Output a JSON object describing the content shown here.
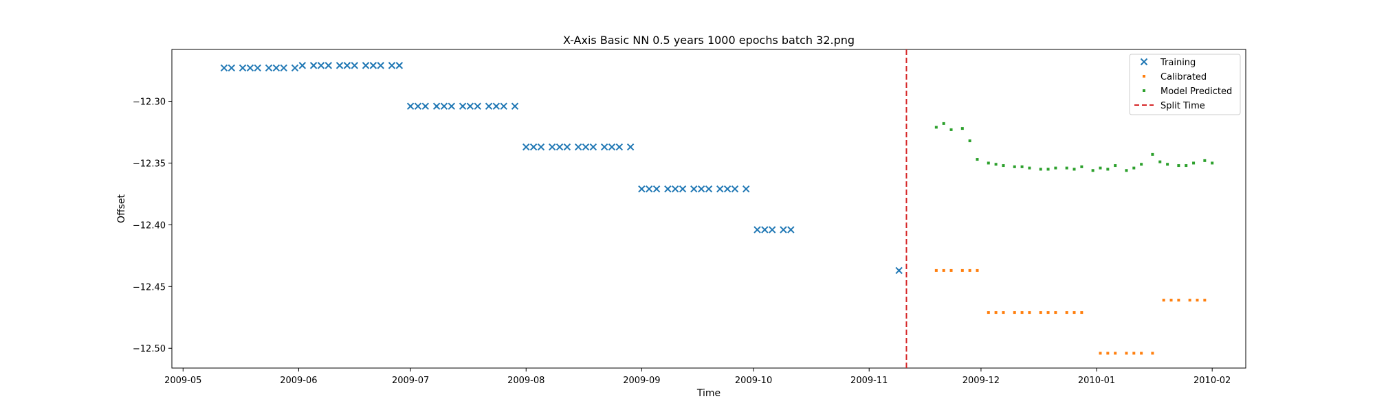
{
  "chart_data": {
    "type": "scatter",
    "title": "X-Axis Basic NN 0.5 years 1000 epochs batch 32.png",
    "xlabel": "Time",
    "ylabel": "Offset",
    "x_type": "date",
    "xlim": [
      "2009-04-28",
      "2010-02-10"
    ],
    "ylim": [
      -12.516,
      -12.258
    ],
    "x_ticks": [
      {
        "value": "2009-05-01",
        "label": "2009-05"
      },
      {
        "value": "2009-06-01",
        "label": "2009-06"
      },
      {
        "value": "2009-07-01",
        "label": "2009-07"
      },
      {
        "value": "2009-08-01",
        "label": "2009-08"
      },
      {
        "value": "2009-09-01",
        "label": "2009-09"
      },
      {
        "value": "2009-10-01",
        "label": "2009-10"
      },
      {
        "value": "2009-11-01",
        "label": "2009-11"
      },
      {
        "value": "2009-12-01",
        "label": "2009-12"
      },
      {
        "value": "2010-01-01",
        "label": "2010-01"
      },
      {
        "value": "2010-02-01",
        "label": "2010-02"
      }
    ],
    "y_ticks": [
      {
        "value": -12.3,
        "label": "−12.30"
      },
      {
        "value": -12.35,
        "label": "−12.35"
      },
      {
        "value": -12.4,
        "label": "−12.40"
      },
      {
        "value": -12.45,
        "label": "−12.45"
      },
      {
        "value": -12.5,
        "label": "−12.50"
      }
    ],
    "grid": false,
    "legend_position": "top-right",
    "split_time": "2009-11-11",
    "series": [
      {
        "name": "Training",
        "marker": "x",
        "color": "#1f77b4",
        "points": [
          [
            "2009-05-12",
            -12.273
          ],
          [
            "2009-05-14",
            -12.273
          ],
          [
            "2009-05-17",
            -12.273
          ],
          [
            "2009-05-19",
            -12.273
          ],
          [
            "2009-05-21",
            -12.273
          ],
          [
            "2009-05-24",
            -12.273
          ],
          [
            "2009-05-26",
            -12.273
          ],
          [
            "2009-05-28",
            -12.273
          ],
          [
            "2009-05-31",
            -12.273
          ],
          [
            "2009-06-02",
            -12.271
          ],
          [
            "2009-06-05",
            -12.271
          ],
          [
            "2009-06-07",
            -12.271
          ],
          [
            "2009-06-09",
            -12.271
          ],
          [
            "2009-06-12",
            -12.271
          ],
          [
            "2009-06-14",
            -12.271
          ],
          [
            "2009-06-16",
            -12.271
          ],
          [
            "2009-06-19",
            -12.271
          ],
          [
            "2009-06-21",
            -12.271
          ],
          [
            "2009-06-23",
            -12.271
          ],
          [
            "2009-06-26",
            -12.271
          ],
          [
            "2009-06-28",
            -12.271
          ],
          [
            "2009-07-01",
            -12.304
          ],
          [
            "2009-07-03",
            -12.304
          ],
          [
            "2009-07-05",
            -12.304
          ],
          [
            "2009-07-08",
            -12.304
          ],
          [
            "2009-07-10",
            -12.304
          ],
          [
            "2009-07-12",
            -12.304
          ],
          [
            "2009-07-15",
            -12.304
          ],
          [
            "2009-07-17",
            -12.304
          ],
          [
            "2009-07-19",
            -12.304
          ],
          [
            "2009-07-22",
            -12.304
          ],
          [
            "2009-07-24",
            -12.304
          ],
          [
            "2009-07-26",
            -12.304
          ],
          [
            "2009-07-29",
            -12.304
          ],
          [
            "2009-08-01",
            -12.337
          ],
          [
            "2009-08-03",
            -12.337
          ],
          [
            "2009-08-05",
            -12.337
          ],
          [
            "2009-08-08",
            -12.337
          ],
          [
            "2009-08-10",
            -12.337
          ],
          [
            "2009-08-12",
            -12.337
          ],
          [
            "2009-08-15",
            -12.337
          ],
          [
            "2009-08-17",
            -12.337
          ],
          [
            "2009-08-19",
            -12.337
          ],
          [
            "2009-08-22",
            -12.337
          ],
          [
            "2009-08-24",
            -12.337
          ],
          [
            "2009-08-26",
            -12.337
          ],
          [
            "2009-08-29",
            -12.337
          ],
          [
            "2009-09-01",
            -12.371
          ],
          [
            "2009-09-03",
            -12.371
          ],
          [
            "2009-09-05",
            -12.371
          ],
          [
            "2009-09-08",
            -12.371
          ],
          [
            "2009-09-10",
            -12.371
          ],
          [
            "2009-09-12",
            -12.371
          ],
          [
            "2009-09-15",
            -12.371
          ],
          [
            "2009-09-17",
            -12.371
          ],
          [
            "2009-09-19",
            -12.371
          ],
          [
            "2009-09-22",
            -12.371
          ],
          [
            "2009-09-24",
            -12.371
          ],
          [
            "2009-09-26",
            -12.371
          ],
          [
            "2009-09-29",
            -12.371
          ],
          [
            "2009-10-02",
            -12.404
          ],
          [
            "2009-10-04",
            -12.404
          ],
          [
            "2009-10-06",
            -12.404
          ],
          [
            "2009-10-09",
            -12.404
          ],
          [
            "2009-10-11",
            -12.404
          ],
          [
            "2009-11-09",
            -12.437
          ]
        ]
      },
      {
        "name": "Calibrated",
        "marker": "dot",
        "color": "#ff7f0e",
        "points": [
          [
            "2009-11-19",
            -12.437
          ],
          [
            "2009-11-21",
            -12.437
          ],
          [
            "2009-11-23",
            -12.437
          ],
          [
            "2009-11-26",
            -12.437
          ],
          [
            "2009-11-28",
            -12.437
          ],
          [
            "2009-11-30",
            -12.437
          ],
          [
            "2009-12-03",
            -12.471
          ],
          [
            "2009-12-05",
            -12.471
          ],
          [
            "2009-12-07",
            -12.471
          ],
          [
            "2009-12-10",
            -12.471
          ],
          [
            "2009-12-12",
            -12.471
          ],
          [
            "2009-12-14",
            -12.471
          ],
          [
            "2009-12-17",
            -12.471
          ],
          [
            "2009-12-19",
            -12.471
          ],
          [
            "2009-12-21",
            -12.471
          ],
          [
            "2009-12-24",
            -12.471
          ],
          [
            "2009-12-26",
            -12.471
          ],
          [
            "2009-12-28",
            -12.471
          ],
          [
            "2010-01-02",
            -12.504
          ],
          [
            "2010-01-04",
            -12.504
          ],
          [
            "2010-01-06",
            -12.504
          ],
          [
            "2010-01-09",
            -12.504
          ],
          [
            "2010-01-11",
            -12.504
          ],
          [
            "2010-01-13",
            -12.504
          ],
          [
            "2010-01-16",
            -12.504
          ],
          [
            "2010-01-19",
            -12.461
          ],
          [
            "2010-01-21",
            -12.461
          ],
          [
            "2010-01-23",
            -12.461
          ],
          [
            "2010-01-26",
            -12.461
          ],
          [
            "2010-01-28",
            -12.461
          ],
          [
            "2010-01-30",
            -12.461
          ]
        ]
      },
      {
        "name": "Model Predicted",
        "marker": "dot",
        "color": "#2ca02c",
        "points": [
          [
            "2009-11-19",
            -12.321
          ],
          [
            "2009-11-21",
            -12.318
          ],
          [
            "2009-11-23",
            -12.323
          ],
          [
            "2009-11-26",
            -12.322
          ],
          [
            "2009-11-28",
            -12.332
          ],
          [
            "2009-11-30",
            -12.347
          ],
          [
            "2009-12-03",
            -12.35
          ],
          [
            "2009-12-05",
            -12.351
          ],
          [
            "2009-12-07",
            -12.352
          ],
          [
            "2009-12-10",
            -12.353
          ],
          [
            "2009-12-12",
            -12.353
          ],
          [
            "2009-12-14",
            -12.354
          ],
          [
            "2009-12-17",
            -12.355
          ],
          [
            "2009-12-19",
            -12.355
          ],
          [
            "2009-12-21",
            -12.354
          ],
          [
            "2009-12-24",
            -12.354
          ],
          [
            "2009-12-26",
            -12.355
          ],
          [
            "2009-12-28",
            -12.353
          ],
          [
            "2009-12-31",
            -12.356
          ],
          [
            "2010-01-02",
            -12.354
          ],
          [
            "2010-01-04",
            -12.355
          ],
          [
            "2010-01-06",
            -12.352
          ],
          [
            "2010-01-09",
            -12.356
          ],
          [
            "2010-01-11",
            -12.354
          ],
          [
            "2010-01-13",
            -12.351
          ],
          [
            "2010-01-16",
            -12.343
          ],
          [
            "2010-01-18",
            -12.349
          ],
          [
            "2010-01-20",
            -12.351
          ],
          [
            "2010-01-23",
            -12.352
          ],
          [
            "2010-01-25",
            -12.352
          ],
          [
            "2010-01-27",
            -12.35
          ],
          [
            "2010-01-30",
            -12.348
          ],
          [
            "2010-02-01",
            -12.35
          ]
        ]
      },
      {
        "name": "Split Time",
        "marker": "dashed-line",
        "color": "#d62728"
      }
    ]
  }
}
